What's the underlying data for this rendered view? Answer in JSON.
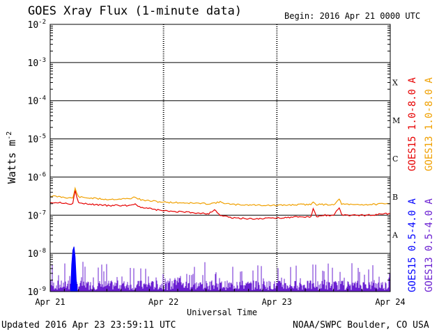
{
  "header": {
    "title": "GOES Xray Flux (1-minute data)",
    "begin_label": "Begin:  2016 Apr 21 0000 UTC"
  },
  "footer": {
    "updated": "Updated 2016 Apr 23 23:59:11 UTC",
    "credit": "NOAA/SWPC Boulder, CO USA"
  },
  "chart_data": {
    "type": "line",
    "xlabel": "Universal Time",
    "ylabel_text": "Watts m",
    "ylabel_sup": "-2",
    "y_scale": "log",
    "ylim": [
      1e-09,
      0.01
    ],
    "xlim": [
      "2016-04-21 00:00",
      "2016-04-24 00:00"
    ],
    "x_ticks": [
      "Apr 21",
      "Apr 22",
      "Apr 23",
      "Apr 24"
    ],
    "y_ticks": [
      {
        "value": 0.01,
        "base": "10",
        "exp": "-2"
      },
      {
        "value": 0.001,
        "base": "10",
        "exp": "-3"
      },
      {
        "value": 0.0001,
        "base": "10",
        "exp": "-4"
      },
      {
        "value": 1e-05,
        "base": "10",
        "exp": "-5"
      },
      {
        "value": 1e-06,
        "base": "10",
        "exp": "-6"
      },
      {
        "value": 1e-07,
        "base": "10",
        "exp": "-7"
      },
      {
        "value": 1e-08,
        "base": "10",
        "exp": "-8"
      },
      {
        "value": 1e-09,
        "base": "10",
        "exp": "-9"
      }
    ],
    "flare_classes": [
      {
        "label": "X",
        "min": 0.0001,
        "max": 0.001
      },
      {
        "label": "M",
        "min": 1e-05,
        "max": 0.0001
      },
      {
        "label": "C",
        "min": 1e-06,
        "max": 1e-05
      },
      {
        "label": "B",
        "min": 1e-07,
        "max": 1e-06
      },
      {
        "label": "A",
        "min": 1e-08,
        "max": 1e-07
      }
    ],
    "grid": true,
    "legend": [
      {
        "name": "GOES15 1.0-8.0 A",
        "color": "#e60000"
      },
      {
        "name": "GOES13 1.0-8.0 A",
        "color": "#f0a000"
      },
      {
        "name": "GOES15 0.5-4.0 A",
        "color": "#0000ff"
      },
      {
        "name": "GOES13 0.5-4.0 A",
        "color": "#6a1fd1"
      }
    ],
    "series": [
      {
        "name": "GOES13 1.0-8.0 A",
        "color": "#f0a000",
        "x_days": [
          0,
          0.1,
          0.2,
          0.22,
          0.25,
          0.3,
          0.5,
          0.7,
          0.75,
          0.8,
          1.0,
          1.2,
          1.4,
          1.5,
          1.6,
          1.8,
          2.0,
          2.2,
          2.3,
          2.32,
          2.35,
          2.5,
          2.55,
          2.57,
          2.6,
          2.8,
          3.0
        ],
        "y": [
          3.2e-07,
          3e-07,
          2.8e-07,
          5e-07,
          3e-07,
          2.9e-07,
          2.6e-07,
          2.7e-07,
          3e-07,
          2.5e-07,
          2.2e-07,
          2.1e-07,
          2e-07,
          2.2e-07,
          1.9e-07,
          1.85e-07,
          1.8e-07,
          1.9e-07,
          1.9e-07,
          2.3e-07,
          1.9e-07,
          1.9e-07,
          2.6e-07,
          2e-07,
          1.9e-07,
          1.9e-07,
          2e-07
        ]
      },
      {
        "name": "GOES15 1.0-8.0 A",
        "color": "#e60000",
        "x_days": [
          0,
          0.1,
          0.2,
          0.22,
          0.25,
          0.3,
          0.5,
          0.7,
          0.75,
          0.8,
          1.0,
          1.2,
          1.4,
          1.45,
          1.5,
          1.6,
          1.8,
          2.0,
          2.2,
          2.3,
          2.32,
          2.35,
          2.4,
          2.5,
          2.55,
          2.57,
          2.6,
          2.8,
          3.0
        ],
        "y": [
          2.2e-07,
          2.1e-07,
          2e-07,
          4.5e-07,
          2.1e-07,
          2e-07,
          1.8e-07,
          1.8e-07,
          2e-07,
          1.6e-07,
          1.3e-07,
          1.2e-07,
          1.1e-07,
          1.4e-07,
          1e-07,
          8.5e-08,
          8e-08,
          8.5e-08,
          9e-08,
          9e-08,
          1.5e-07,
          9e-08,
          1e-07,
          1e-07,
          1.6e-07,
          1.05e-07,
          1e-07,
          1e-07,
          1.1e-07
        ]
      },
      {
        "name": "GOES15 0.5-4.0 A",
        "color": "#0000ff",
        "x_days": [
          0.18,
          0.19,
          0.2,
          0.21,
          0.22,
          0.23,
          0.24
        ],
        "y": [
          1e-09,
          5e-09,
          1.2e-08,
          1.5e-08,
          8e-09,
          2e-09,
          1e-09
        ]
      },
      {
        "name": "GOES13 0.5-4.0 A",
        "color": "#6a1fd1",
        "x_days": [
          0,
          3
        ],
        "y": [
          1.3e-09,
          1.3e-09
        ]
      }
    ]
  }
}
